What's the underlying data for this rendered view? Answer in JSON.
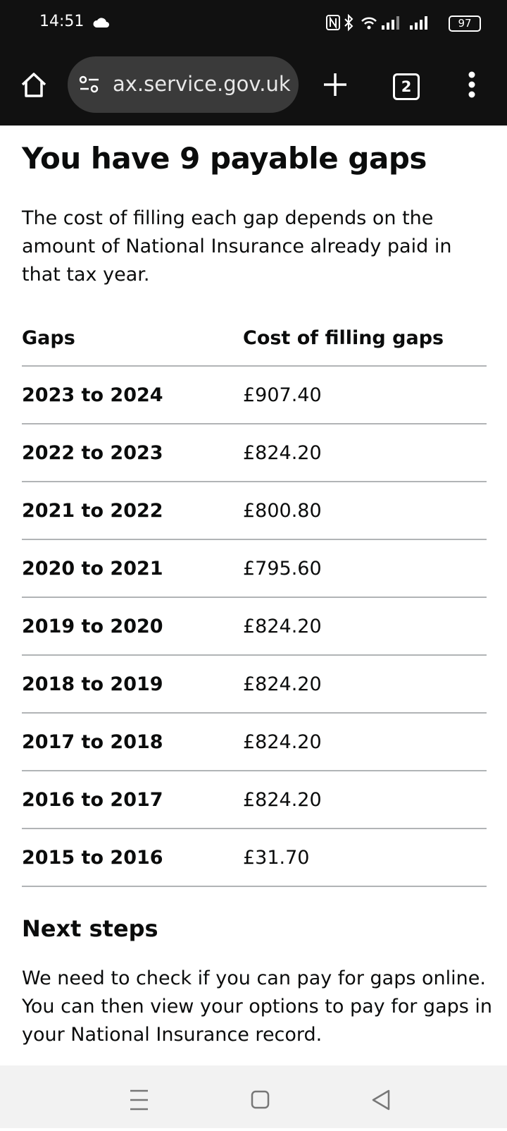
{
  "status_bar": {
    "time": "14:51",
    "battery": "97"
  },
  "browser": {
    "url": "ax.service.gov.uk",
    "tab_count": "2"
  },
  "page": {
    "title": "You have 9 payable gaps",
    "intro": "The cost of filling each gap depends on the amount of National Insurance already paid in that tax year.",
    "table": {
      "headers": [
        "Gaps",
        "Cost of filling gaps"
      ],
      "rows": [
        [
          "2023 to 2024",
          "£907.40"
        ],
        [
          "2022 to 2023",
          "£824.20"
        ],
        [
          "2021 to 2022",
          "£800.80"
        ],
        [
          "2020 to 2021",
          "£795.60"
        ],
        [
          "2019 to 2020",
          "£824.20"
        ],
        [
          "2018 to 2019",
          "£824.20"
        ],
        [
          "2017 to 2018",
          "£824.20"
        ],
        [
          "2016 to 2017",
          "£824.20"
        ],
        [
          "2015 to 2016",
          "£31.70"
        ]
      ]
    },
    "next_steps_heading": "Next steps",
    "next_steps_text": "We need to check if you can pay for gaps online. You can then view your options to pay for gaps in your National Insurance record."
  }
}
